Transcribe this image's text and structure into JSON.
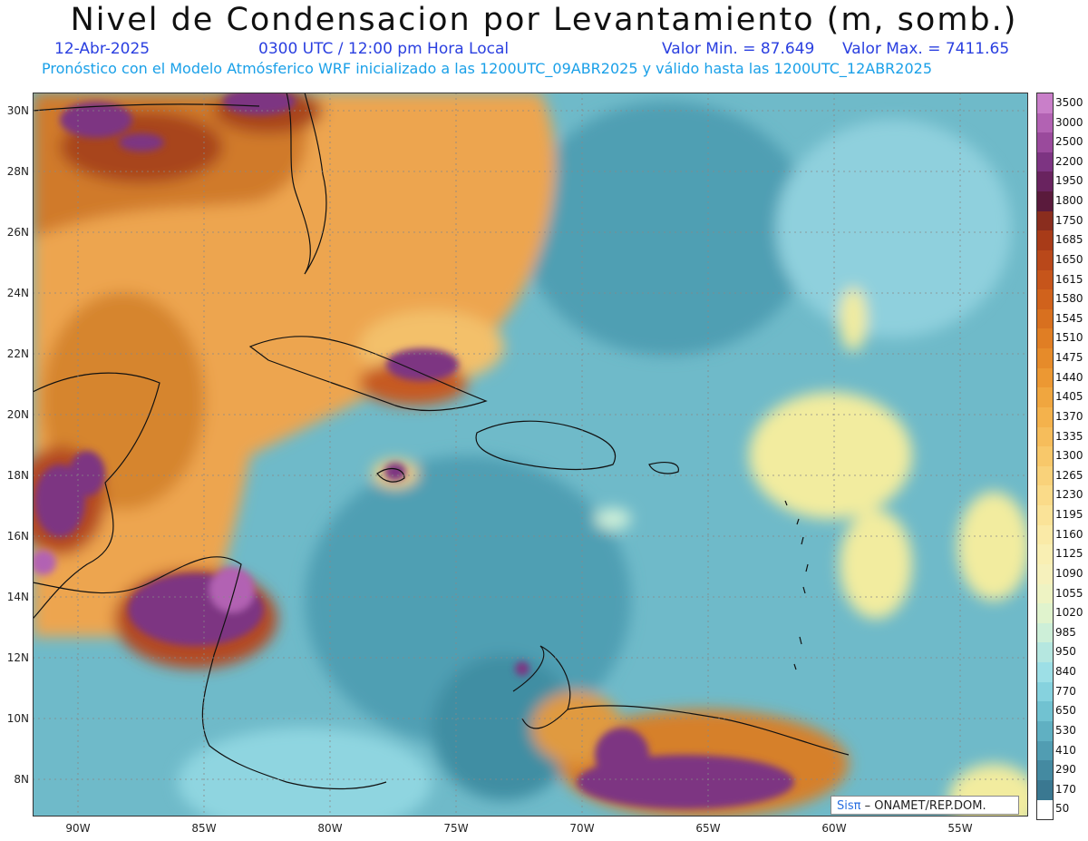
{
  "title": "Nivel de Condensacion por Levantamiento (m, somb.)",
  "header": {
    "date": "12-Abr-2025",
    "time": "0300 UTC / 12:00 pm Hora Local",
    "min": "Valor Min. = 87.649",
    "max": "Valor Max. = 7411.65",
    "forecast": "Pronóstico con el Modelo Atmósferico WRF inicializado a las 1200UTC_09ABR2025 y válido hasta las  1200UTC_12ABR2025"
  },
  "lat_labels": [
    "30N",
    "28N",
    "26N",
    "24N",
    "22N",
    "20N",
    "18N",
    "16N",
    "14N",
    "12N",
    "10N",
    "8N"
  ],
  "lon_labels": [
    "90W",
    "85W",
    "80W",
    "75W",
    "70W",
    "65W",
    "60W",
    "55W"
  ],
  "colorbar": {
    "labels": [
      "3500",
      "3000",
      "2500",
      "2200",
      "1950",
      "1800",
      "1750",
      "1685",
      "1650",
      "1615",
      "1580",
      "1545",
      "1510",
      "1475",
      "1440",
      "1405",
      "1370",
      "1335",
      "1300",
      "1265",
      "1230",
      "1195",
      "1160",
      "1125",
      "1090",
      "1055",
      "1020",
      "985",
      "950",
      "840",
      "770",
      "650",
      "530",
      "410",
      "290",
      "170",
      "50"
    ],
    "colors": [
      "#c97fc9",
      "#b262b3",
      "#9a4a9c",
      "#7d3482",
      "#69235f",
      "#5a1a3c",
      "#8a2d1e",
      "#a83b18",
      "#b9481a",
      "#c6551b",
      "#d0621c",
      "#d8701f",
      "#e07e24",
      "#e68b2a",
      "#ec9833",
      "#f0a63f",
      "#f4b24c",
      "#f6bd5b",
      "#f8c86a",
      "#f9d27a",
      "#fadb89",
      "#fae398",
      "#faeaa7",
      "#f9efb3",
      "#f6f1bc",
      "#eef3c3",
      "#e0f3cd",
      "#cdefd8",
      "#b5e7e0",
      "#9ddfe6",
      "#86d2de",
      "#71c2d1",
      "#60b0c2",
      "#519db2",
      "#448aa1",
      "#3a7891"
    ]
  },
  "credit": {
    "logo": "Sisπ",
    "text": "– ONAMET/REP.DOM."
  }
}
